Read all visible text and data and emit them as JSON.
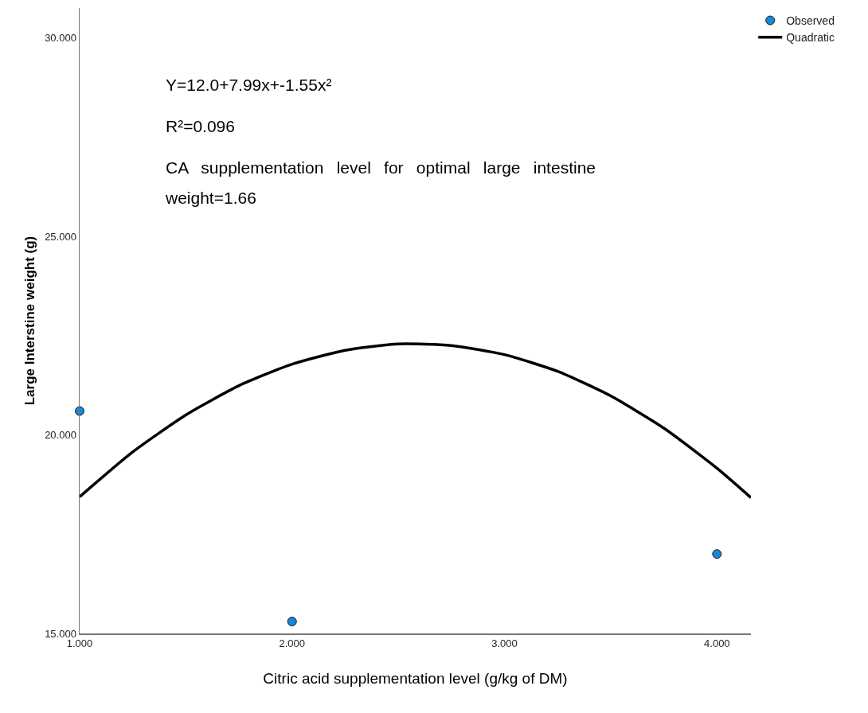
{
  "chart_data": {
    "type": "scatter",
    "xlabel": "Citric acid supplementation level (g/kg of DM)",
    "ylabel": "Large Interstine weight (g)",
    "xlim": [
      1,
      4.16
    ],
    "xticks": [
      {
        "value": 1,
        "label": "1.000"
      },
      {
        "value": 2,
        "label": "2.000"
      },
      {
        "value": 3,
        "label": "3.000"
      },
      {
        "value": 4,
        "label": "4.000"
      }
    ],
    "ylim": [
      15,
      30.75
    ],
    "yticks": [
      {
        "value": 15,
        "label": "15.000"
      },
      {
        "value": 20,
        "label": "20.000"
      },
      {
        "value": 25,
        "label": "25.000"
      },
      {
        "value": 30,
        "label": "30.000"
      }
    ],
    "grid": false,
    "legend": "top right",
    "marker": "circle",
    "series": [
      {
        "name": "Observed",
        "color": "#1a86d6",
        "x": [
          1,
          2,
          4
        ],
        "values": [
          20.6,
          15.3,
          17.0
        ]
      },
      {
        "name": "Quadratic",
        "type": "line",
        "color": "#000000",
        "line_style": "solid",
        "marker": "none",
        "x": [
          1,
          1.25,
          1.5,
          1.75,
          2,
          2.25,
          2.5,
          2.75,
          3,
          3.25,
          3.5,
          3.75,
          4,
          4.16
        ],
        "values": [
          18.44,
          19.57,
          20.5,
          21.24,
          21.78,
          22.13,
          22.29,
          22.25,
          22.02,
          21.6,
          20.98,
          20.17,
          19.16,
          18.42
        ]
      }
    ],
    "annotations": [
      "Y=12.0+7.99x+-1.55x²",
      "R²=0.096",
      "CA supplementation level for optimal large intestine weight=1.66"
    ]
  }
}
